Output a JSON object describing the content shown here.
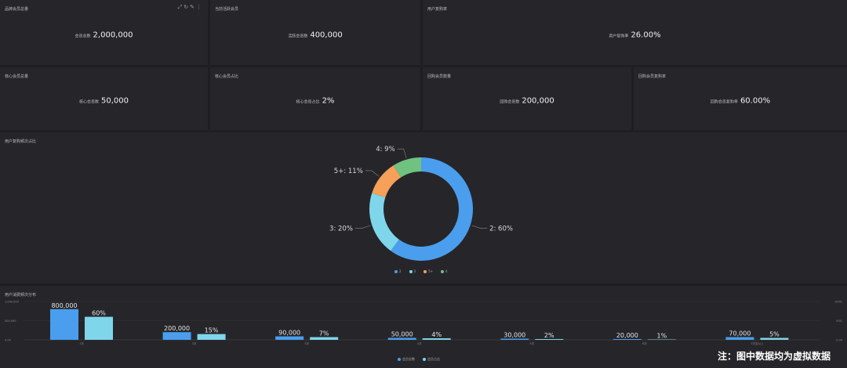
{
  "colors": {
    "background": "#1f1f22",
    "panel": "#26262a",
    "blue": "#4a9eed",
    "cyan": "#7fd6ea",
    "orange": "#f6a05a",
    "green": "#6fc27f"
  },
  "kpis": {
    "k1": {
      "title": "品牌会员总量",
      "label": "会员总数",
      "value": "2,000,000"
    },
    "k2": {
      "title": "当前活跃会员",
      "label": "活跃会员数",
      "value": "400,000"
    },
    "k3": {
      "title": "用户复购率",
      "label": "用户复购率",
      "value": "26.00%"
    },
    "k4": {
      "title": "核心会员总量",
      "label": "核心会员数",
      "value": "50,000"
    },
    "k5": {
      "title": "核心会员占比",
      "label": "核心会员占比",
      "value": "2%"
    },
    "k6": {
      "title": "回购会员数量",
      "label": "回购会员数",
      "value": "200,000"
    },
    "k7": {
      "title": "回购会员复购率",
      "label": "回购会员复购率",
      "value": "60.00%"
    }
  },
  "toolbar_icons": [
    "export-icon",
    "refresh-icon",
    "edit-icon",
    "more-icon"
  ],
  "donut_panel": {
    "title": "用户复购频次占比"
  },
  "bar_panel": {
    "title": "用户消费频次分布"
  },
  "note": "注：图中数据均为虚拟数据",
  "chart_data": [
    {
      "type": "pie",
      "title": "用户复购频次占比",
      "legend": [
        "2",
        "3",
        "5+",
        "4"
      ],
      "legend_position": "bottom",
      "slices": [
        {
          "label": "2",
          "value": 60,
          "display": "2: 60%",
          "color": "#4a9eed"
        },
        {
          "label": "3",
          "value": 20,
          "display": "3: 20%",
          "color": "#7fd6ea"
        },
        {
          "label": "5+",
          "value": 11,
          "display": "5+: 11%",
          "color": "#f6a05a"
        },
        {
          "label": "4",
          "value": 9,
          "display": "4: 9%",
          "color": "#6fc27f"
        }
      ]
    },
    {
      "type": "bar",
      "title": "用户消费频次分布",
      "categories": [
        "1次",
        "2次",
        "3次",
        "4次",
        "5次",
        "6次",
        "7次及以上"
      ],
      "legend": [
        "会员总数",
        "会员占比"
      ],
      "legend_position": "bottom",
      "grid": true,
      "y_left_ticks": [
        "1,000,000",
        "500,000",
        "0.00"
      ],
      "y_right_ticks": [
        "100%",
        "50%",
        "0.00"
      ],
      "ylim_left": [
        0,
        1000000
      ],
      "ylim_right": [
        0,
        100
      ],
      "series": [
        {
          "name": "会员总数",
          "axis": "left",
          "color": "#4a9eed",
          "values": [
            800000,
            200000,
            90000,
            50000,
            30000,
            20000,
            70000
          ],
          "labels": [
            "800,000",
            "200,000",
            "90,000",
            "50,000",
            "30,000",
            "20,000",
            "70,000"
          ]
        },
        {
          "name": "会员占比",
          "axis": "right",
          "color": "#7fd6ea",
          "values": [
            60,
            15,
            7,
            4,
            2,
            1,
            5
          ],
          "labels": [
            "60%",
            "15%",
            "7%",
            "4%",
            "2%",
            "1%",
            "5%"
          ]
        }
      ]
    }
  ]
}
